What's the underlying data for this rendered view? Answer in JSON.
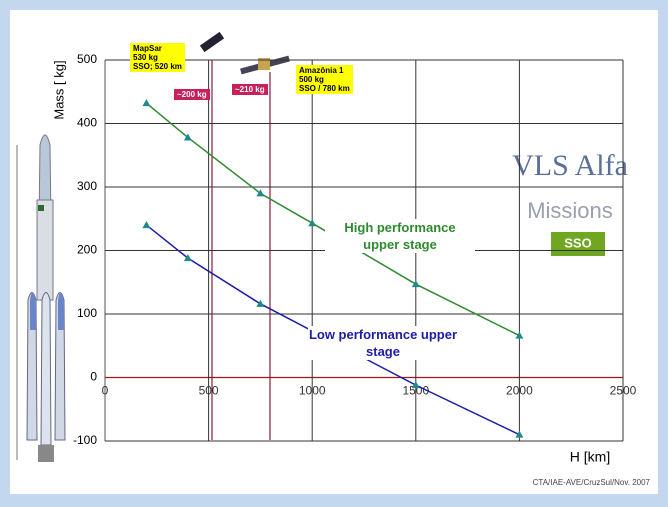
{
  "chart_data": {
    "type": "line",
    "y_label": "Mass [ kg]",
    "x_label": "H [km]",
    "xlim": [
      0,
      2500
    ],
    "ylim": [
      -100,
      500
    ],
    "xticks": [
      0,
      500,
      1000,
      1500,
      2000,
      2500
    ],
    "yticks": [
      -100,
      0,
      100,
      200,
      300,
      400,
      500
    ],
    "grid": true,
    "series": [
      {
        "name": "High performance upper stage",
        "color": "#2f8a2f",
        "x": [
          200,
          400,
          750,
          1000,
          1500,
          2000
        ],
        "values": [
          432,
          378,
          290,
          243,
          147,
          66
        ]
      },
      {
        "name": "Low performance upper stage",
        "color": "#1c1ca8",
        "x": [
          200,
          400,
          750,
          1500,
          2000
        ],
        "values": [
          240,
          188,
          116,
          -12,
          -90
        ]
      }
    ],
    "annotations": [
      {
        "lines": [
          "MapSar",
          "530 kg",
          "SSO; 520 km"
        ]
      },
      {
        "lines": [
          "Amazônia 1",
          "500 kg",
          "SSO / 780 km"
        ]
      },
      {
        "lines": [
          "~200 kg"
        ]
      },
      {
        "lines": [
          "~210 kg"
        ]
      }
    ]
  },
  "slide": {
    "logo_title": "VLS Alfa",
    "logo_subtitle": "Missions",
    "orbit": "SSO",
    "credit": "CTA/IAE-AVE/CruzSul/Nov. 2007"
  }
}
